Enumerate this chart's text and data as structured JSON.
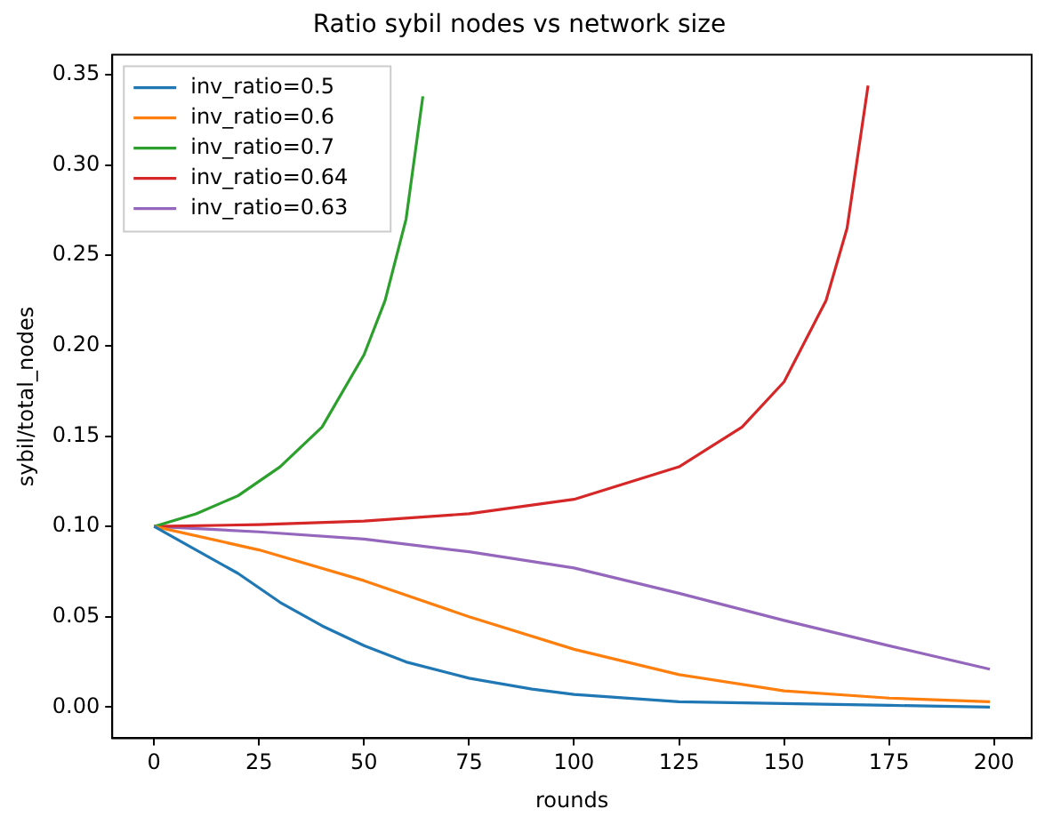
{
  "chart_data": {
    "type": "line",
    "title": "Ratio sybil nodes vs network size",
    "xlabel": "rounds",
    "ylabel": "sybil/total_nodes",
    "xlim": [
      -9.95,
      208.95
    ],
    "ylim": [
      -0.0172,
      0.361
    ],
    "xticks": [
      0,
      25,
      50,
      75,
      100,
      125,
      150,
      175,
      200
    ],
    "yticks": [
      {
        "value": 0,
        "label": "0.00"
      },
      {
        "value": 0.05,
        "label": "0.05"
      },
      {
        "value": 0.1,
        "label": "0.10"
      },
      {
        "value": 0.15,
        "label": "0.15"
      },
      {
        "value": 0.2,
        "label": "0.20"
      },
      {
        "value": 0.25,
        "label": "0.25"
      },
      {
        "value": 0.3,
        "label": "0.30"
      },
      {
        "value": 0.35,
        "label": "0.35"
      }
    ],
    "legend": "top left",
    "grid": false,
    "marker": "none",
    "line_style": "solid",
    "series": [
      {
        "name": "inv_ratio=0.5",
        "color": "#1f77b4",
        "x": [
          0,
          10,
          20,
          25,
          30,
          40,
          50,
          60,
          75,
          90,
          100,
          125,
          150,
          175,
          199
        ],
        "values": [
          0.1,
          0.087,
          0.074,
          0.066,
          0.058,
          0.045,
          0.034,
          0.025,
          0.016,
          0.01,
          0.007,
          0.003,
          0.002,
          0.001,
          0
        ]
      },
      {
        "name": "inv_ratio=0.6",
        "color": "#ff7f0e",
        "x": [
          0,
          25,
          50,
          75,
          100,
          125,
          150,
          175,
          199
        ],
        "values": [
          0.1,
          0.087,
          0.07,
          0.05,
          0.032,
          0.018,
          0.009,
          0.005,
          0.003
        ]
      },
      {
        "name": "inv_ratio=0.7",
        "color": "#2ca02c",
        "x": [
          0,
          10,
          20,
          30,
          40,
          50,
          55,
          60,
          64
        ],
        "values": [
          0.1,
          0.107,
          0.117,
          0.133,
          0.155,
          0.195,
          0.225,
          0.27,
          0.338
        ]
      },
      {
        "name": "inv_ratio=0.64",
        "color": "#d62728",
        "x": [
          0,
          25,
          50,
          75,
          100,
          125,
          140,
          150,
          160,
          165,
          170
        ],
        "values": [
          0.1,
          0.101,
          0.103,
          0.107,
          0.115,
          0.133,
          0.155,
          0.18,
          0.225,
          0.265,
          0.344
        ]
      },
      {
        "name": "inv_ratio=0.63",
        "color": "#9467bd",
        "x": [
          0,
          25,
          50,
          75,
          100,
          125,
          150,
          175,
          199
        ],
        "values": [
          0.1,
          0.097,
          0.093,
          0.086,
          0.077,
          0.063,
          0.048,
          0.034,
          0.021
        ]
      }
    ]
  }
}
